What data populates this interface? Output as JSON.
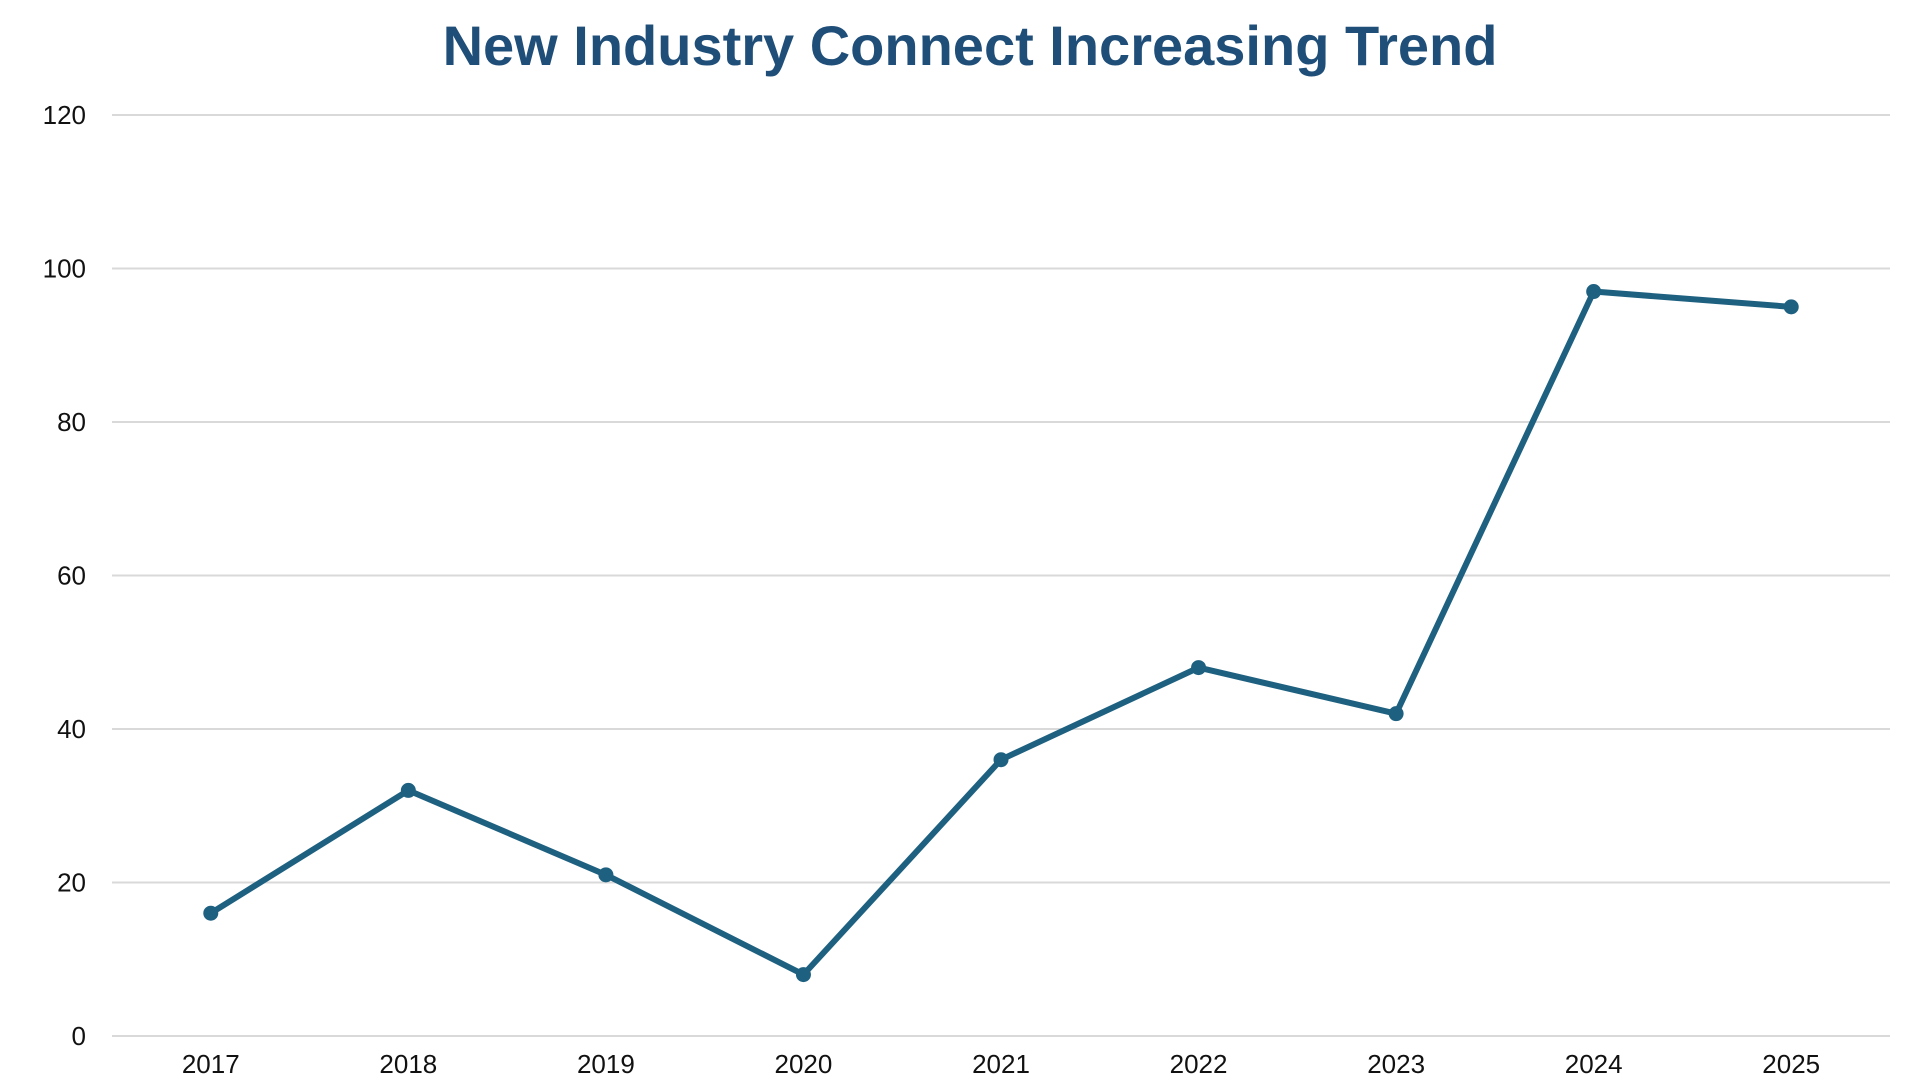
{
  "colors": {
    "title": "#1F4E79",
    "line": "#1E6080",
    "grid": "#D9D9D9",
    "text": "#111111"
  },
  "chart_data": {
    "type": "line",
    "title": "New Industry Connect Increasing Trend",
    "xlabel": "",
    "ylabel": "",
    "categories": [
      "2017",
      "2018",
      "2019",
      "2020",
      "2021",
      "2022",
      "2023",
      "2024",
      "2025"
    ],
    "series": [
      {
        "name": "New Industry Connect",
        "values": [
          16,
          32,
          21,
          8,
          36,
          48,
          42,
          97,
          95
        ]
      }
    ],
    "ylim": [
      0,
      120
    ],
    "yticks": [
      0,
      20,
      40,
      60,
      80,
      100,
      120
    ],
    "grid": true,
    "legend": "none"
  }
}
